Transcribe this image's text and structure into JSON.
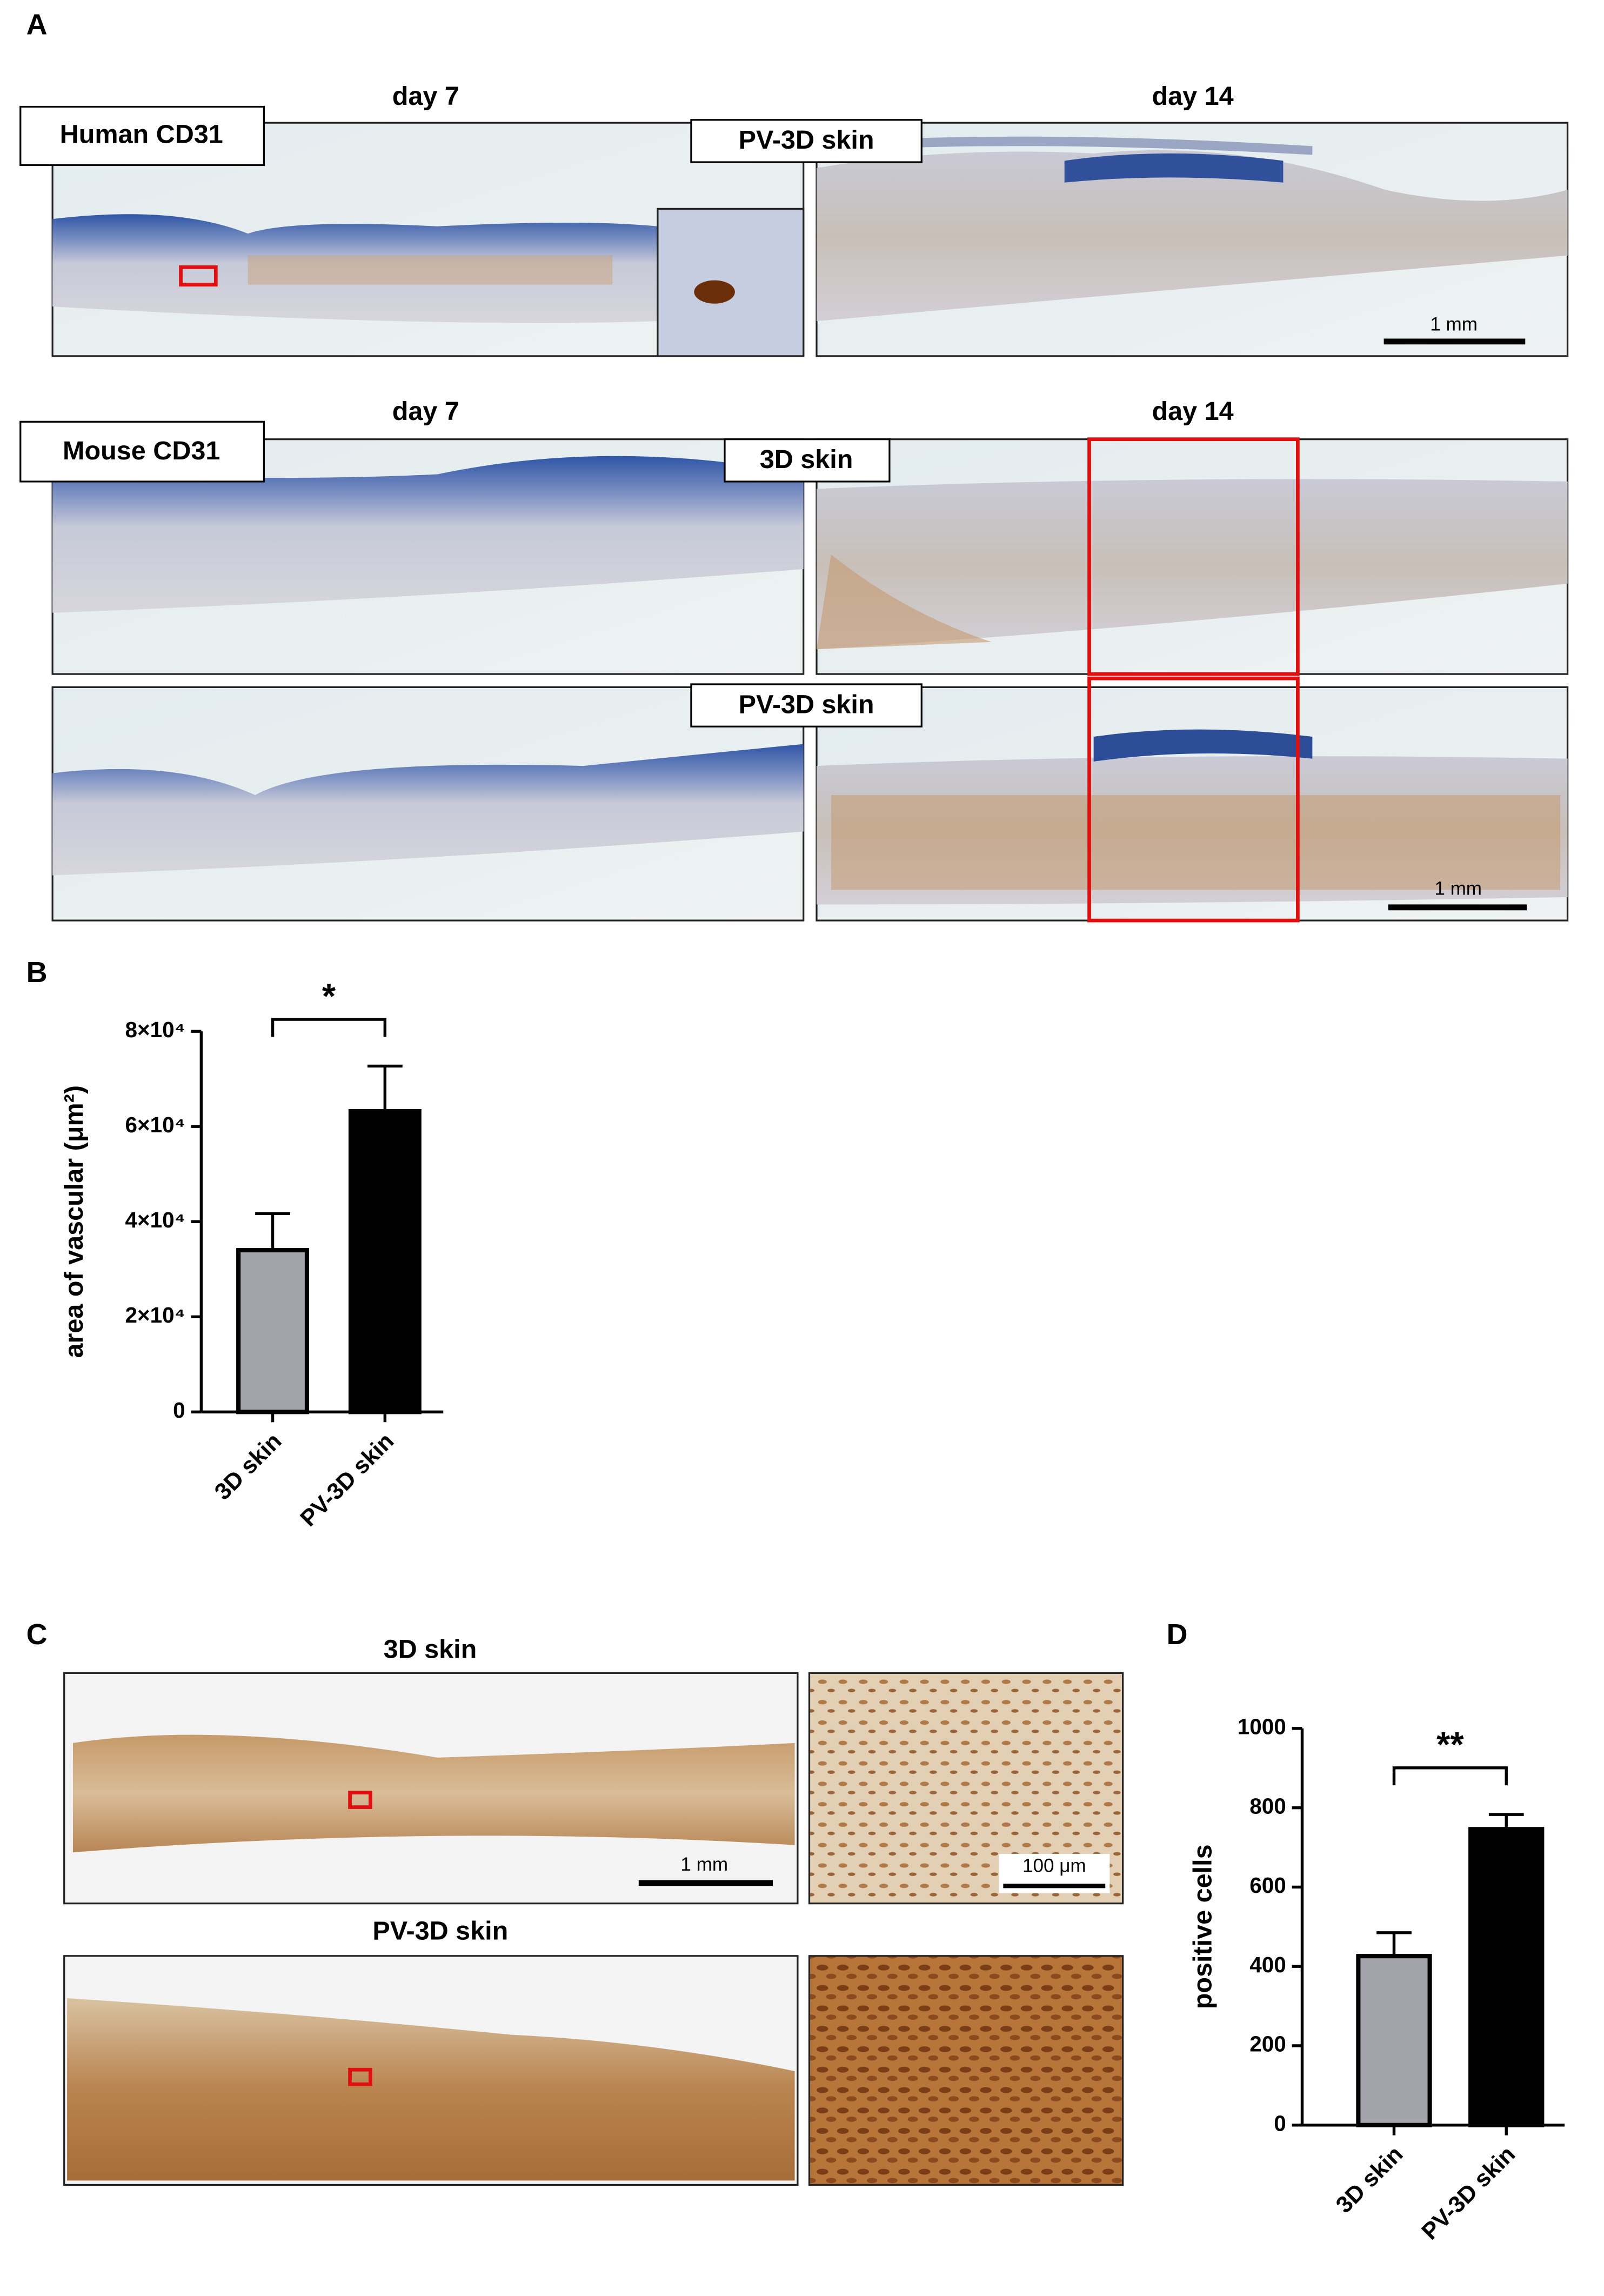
{
  "panels": {
    "A": {
      "label": "A",
      "rows": [
        {
          "left_title": "day 7",
          "right_title": "day 14",
          "stain": "Human CD31",
          "group": "PV-3D skin",
          "scale_bar": "1 mm"
        },
        {
          "left_title": "day 7",
          "right_title": "day 14",
          "stain": "Mouse CD31",
          "group": "3D skin"
        },
        {
          "group": "PV-3D skin",
          "scale_bar": "1 mm"
        }
      ]
    },
    "B": {
      "label": "B"
    },
    "C": {
      "label": "C",
      "top_title": "3D skin",
      "bottom_title": "PV-3D skin",
      "scale_bar": "1 mm",
      "inset_scale_bar": "100 μm"
    },
    "D": {
      "label": "D"
    }
  },
  "chart_data": [
    {
      "type": "bar",
      "ylabel": "area of vascular (μm²)",
      "categories": [
        "3D skin",
        "PV-3D skin"
      ],
      "values": [
        34000,
        63200
      ],
      "errors": [
        7700,
        9500
      ],
      "colors": [
        "#a3a3ab",
        "#000000"
      ],
      "ylim": [
        0,
        80000
      ],
      "yticks": [
        0,
        {
          "value": 20000,
          "label": "2×10⁴"
        },
        {
          "value": 40000,
          "label": "4×10⁴"
        },
        {
          "value": 60000,
          "label": "6×10⁴"
        },
        {
          "value": 80000,
          "label": "8×10⁴"
        }
      ],
      "significance": "*"
    },
    {
      "type": "bar",
      "ylabel": "positive cells",
      "categories": [
        "3D skin",
        "PV-3D skin"
      ],
      "values": [
        426,
        746
      ],
      "errors": [
        59,
        37
      ],
      "colors": [
        "#a3a3ab",
        "#000000"
      ],
      "ylim": [
        0,
        1000
      ],
      "yticks": [
        0,
        200,
        400,
        600,
        800,
        1000
      ],
      "significance": "**"
    }
  ]
}
